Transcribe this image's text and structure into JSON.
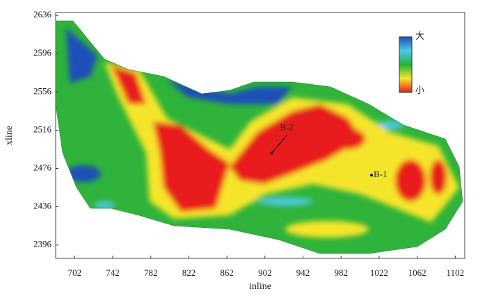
{
  "chart_data": {
    "type": "attribute-map",
    "xlabel": "inline",
    "ylabel": "xline",
    "xlim": [
      682,
      1112
    ],
    "ylim": [
      2382,
      2639
    ],
    "xticks": [
      702,
      742,
      782,
      822,
      862,
      902,
      942,
      982,
      1022,
      1062,
      1102
    ],
    "yticks": [
      2396,
      2436,
      2476,
      2516,
      2556,
      2596,
      2636
    ],
    "wells": [
      {
        "name": "B-2",
        "inline": 909,
        "xline": 2492
      },
      {
        "name": "B-1",
        "inline": 1014,
        "xline": 2469
      }
    ],
    "colorbar": {
      "max_label": "大",
      "min_label": "小",
      "colors": [
        "#1e4fb8",
        "#4fc8e8",
        "#22b33a",
        "#f5e52a",
        "#e81c1c"
      ]
    }
  }
}
